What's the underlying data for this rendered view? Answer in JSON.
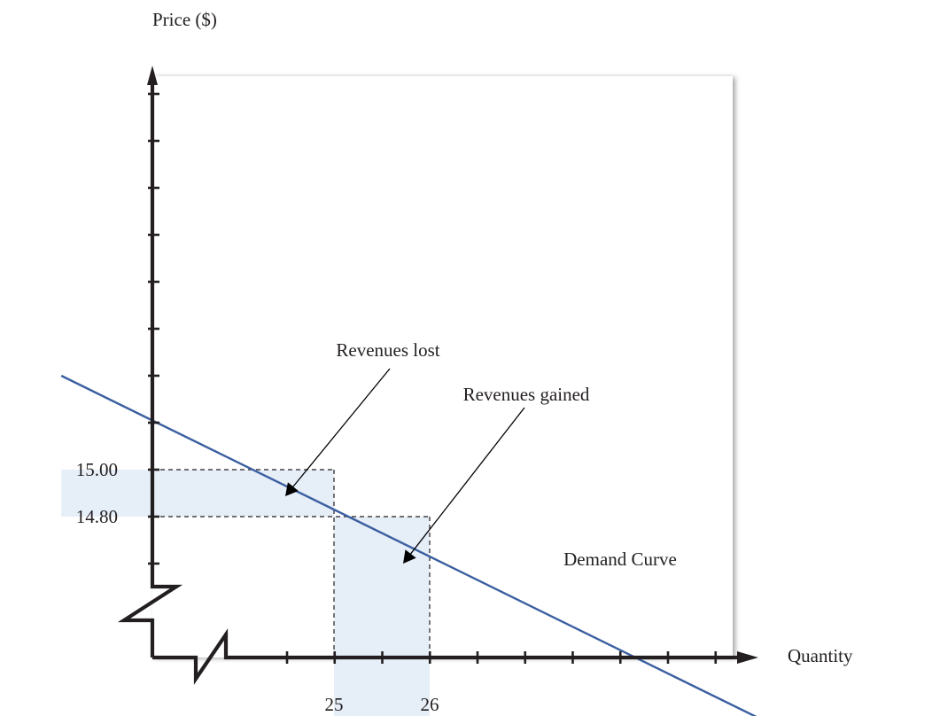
{
  "chart_data": {
    "type": "line",
    "title": "",
    "ylabel": "Price ($)",
    "xlabel": "Quantity",
    "axis_breaks": [
      "x",
      "y"
    ],
    "x_ticks": [
      {
        "value": 25,
        "label": "25"
      },
      {
        "value": 26,
        "label": "26"
      }
    ],
    "y_ticks": [
      {
        "value": 15.0,
        "label": "15.00"
      },
      {
        "value": 14.8,
        "label": "14.80"
      }
    ],
    "series": [
      {
        "type": "line",
        "points": [
          [
            22.15,
            15.4
          ],
          [
            30.05,
            13.82
          ]
        ],
        "color": "#3b5fa0"
      }
    ],
    "series_label": "Demand Curve",
    "points_of_interest": [
      {
        "x": 25,
        "y": 15.0
      },
      {
        "x": 26,
        "y": 14.8
      }
    ],
    "regions": [
      {
        "name": "revenues-lost",
        "x": [
          22.15,
          25
        ],
        "y": [
          14.8,
          15.0
        ],
        "label": "Revenues lost"
      },
      {
        "name": "revenues-gained",
        "x": [
          25,
          26
        ],
        "y": [
          13.82,
          14.8
        ],
        "label": "Revenues gained"
      }
    ],
    "colors": {
      "axis": "#231f20",
      "curve": "#3b5fa0",
      "shade": "#e6eef8",
      "guide": "#231f20"
    }
  }
}
